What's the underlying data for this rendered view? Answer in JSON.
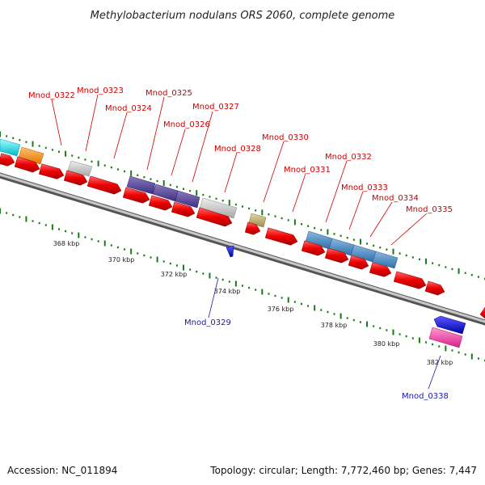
{
  "title": "Methylobacterium nodulans ORS 2060, complete genome",
  "accession": "Accession: NC_011894",
  "summary": "Topology: circular; Length: 7,772,460 bp; Genes: 7,447",
  "colors": {
    "forward_label": "#cc0000",
    "reverse_label": "#1a1aaa",
    "leader_forward": "#cc0000",
    "leader_reverse": "#1a1aaa",
    "backbone": "#8c8c8c",
    "dots": "#1a7a1a"
  },
  "scale": {
    "tick_labels": [
      "368 kbp",
      "370 kbp",
      "372 kbp",
      "374 kbp",
      "376 kbp",
      "378 kbp",
      "380 kbp",
      "382 kbp"
    ]
  },
  "genes": [
    {
      "name": "Mnod_0322",
      "strand": "forward"
    },
    {
      "name": "Mnod_0323",
      "strand": "forward"
    },
    {
      "name": "Mnod_0324",
      "strand": "forward"
    },
    {
      "name": "Mnod_0325",
      "strand": "forward"
    },
    {
      "name": "Mnod_0326",
      "strand": "forward"
    },
    {
      "name": "Mnod_0327",
      "strand": "forward"
    },
    {
      "name": "Mnod_0328",
      "strand": "forward"
    },
    {
      "name": "Mnod_0330",
      "strand": "forward"
    },
    {
      "name": "Mnod_0331",
      "strand": "forward"
    },
    {
      "name": "Mnod_0332",
      "strand": "forward"
    },
    {
      "name": "Mnod_0333",
      "strand": "forward"
    },
    {
      "name": "Mnod_0334",
      "strand": "forward"
    },
    {
      "name": "Mnod_0335",
      "strand": "forward"
    },
    {
      "name": "Mnod_0329",
      "strand": "reverse"
    },
    {
      "name": "Mnod_0338",
      "strand": "reverse"
    }
  ]
}
